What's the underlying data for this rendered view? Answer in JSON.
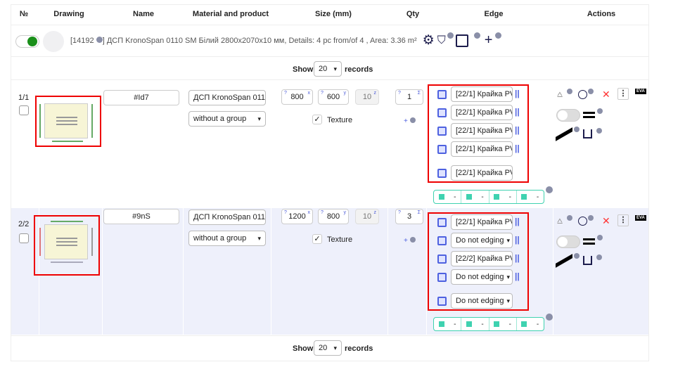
{
  "headers": [
    "№",
    "Drawing",
    "Name",
    "Material and product",
    "Size (mm)",
    "Qty",
    "Edge",
    "Actions"
  ],
  "info_bar": {
    "id": "[14192",
    "text": "] ДСП KronoSpan 0110 SM Білий 2800x2070x10 мм, Details: 4 pc from/of 4 , Area: 3.36 m²",
    "toggle_on": true
  },
  "pagination": {
    "show_label": "Show",
    "value": "20",
    "records_label": "records"
  },
  "texture_label": "Texture",
  "colors": {
    "accent": "#4e61e0",
    "highlight": "#e00000",
    "edge_summary": "#3fd2b0",
    "toggle_on": "#1a8f1a"
  },
  "rows": [
    {
      "num": "1/1",
      "name": "#Id7",
      "material": "ДСП KronoSpan 0110",
      "group": "without a group",
      "x": "800",
      "y": "600",
      "z": "10",
      "qty": "1",
      "texture": true,
      "edges": [
        "[22/1] Крайка PV",
        "[22/1] Крайка PV",
        "[22/1] Крайка PV",
        "[22/1] Крайка PV",
        "[22/1] Крайка PV"
      ],
      "summary": [
        "-",
        "-",
        "-",
        "-"
      ]
    },
    {
      "num": "2/2",
      "name": "#9nS",
      "material": "ДСП KronoSpan 0110",
      "group": "without a group",
      "x": "1200",
      "y": "800",
      "z": "10",
      "qty": "3",
      "texture": true,
      "edges": [
        "[22/1] Крайка PV",
        "Do not edging",
        "[22/2] Крайка PV",
        "Do not edging",
        "Do not edging"
      ],
      "summary": [
        "-",
        "-",
        "-",
        "-"
      ]
    }
  ],
  "axis_tags": {
    "q": "?",
    "x": "x",
    "y": "y",
    "z": "z",
    "sigma": "Σ"
  },
  "actions": {
    "eva": "EVA",
    "plus": "+"
  }
}
